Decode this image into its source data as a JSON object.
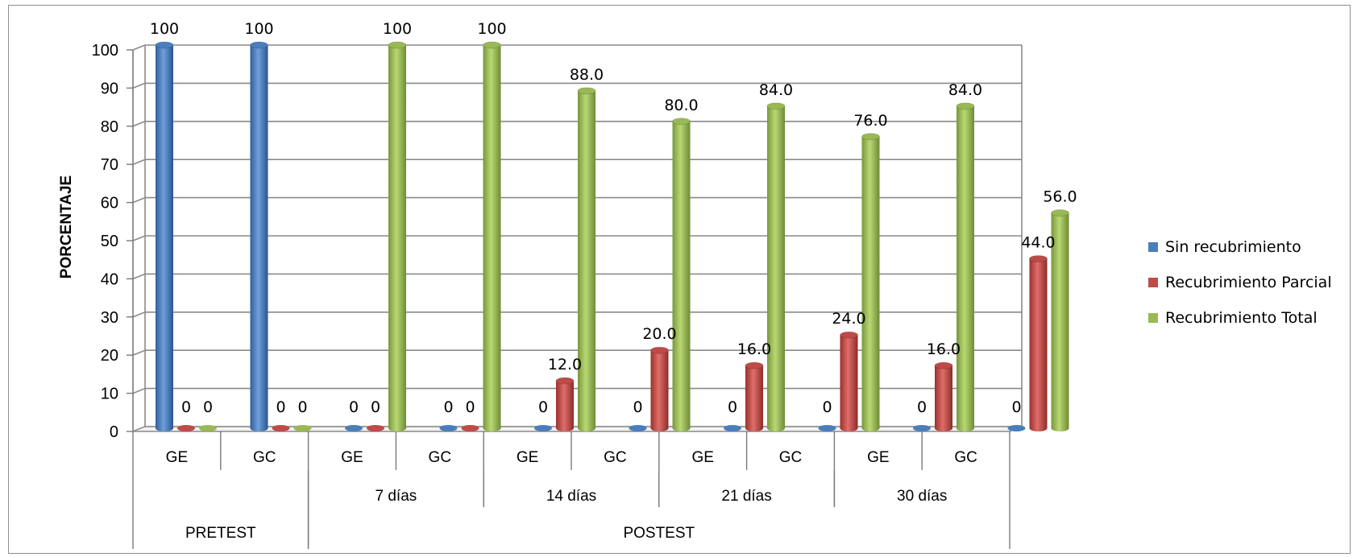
{
  "chart_data": {
    "type": "bar",
    "ylabel": "PORCENTAJE",
    "ylim": [
      0,
      100
    ],
    "yticks": [
      0,
      10,
      20,
      30,
      40,
      50,
      60,
      70,
      80,
      90,
      100
    ],
    "categories": [
      "GE",
      "GC",
      "GE",
      "GC",
      "GE",
      "GC",
      "GE",
      "GC",
      "GE",
      "GC"
    ],
    "subgroups": [
      {
        "label": "",
        "span": [
          0,
          1
        ]
      },
      {
        "label": "7 días",
        "span": [
          2,
          3
        ]
      },
      {
        "label": "14 días",
        "span": [
          4,
          5
        ]
      },
      {
        "label": "21 días",
        "span": [
          6,
          7
        ]
      },
      {
        "label": "30 días",
        "span": [
          8,
          9
        ]
      }
    ],
    "groups": [
      {
        "label": "PRETEST",
        "span": [
          0,
          1
        ]
      },
      {
        "label": "POSTEST",
        "span": [
          2,
          9
        ]
      }
    ],
    "series": [
      {
        "name": "Sin recubrimiento",
        "color": "#4a7ebb",
        "values": [
          100,
          100,
          0,
          0,
          0,
          0,
          0,
          0,
          0,
          0
        ],
        "labels": [
          "100",
          "100",
          "0",
          "0",
          "0",
          "0",
          "0",
          "0",
          "0",
          "0"
        ]
      },
      {
        "name": "Recubrimiento Parcial",
        "color": "#be4b48",
        "values": [
          0,
          0,
          0,
          0,
          12.0,
          20.0,
          16.0,
          24.0,
          16.0,
          44.0
        ],
        "labels": [
          "0",
          "0",
          "0",
          "0",
          "12.0",
          "20.0",
          "16.0",
          "24.0",
          "16.0",
          "44.0"
        ]
      },
      {
        "name": "Recubrimiento Total",
        "color": "#98b954",
        "values": [
          0,
          0,
          100,
          100,
          88.0,
          80.0,
          84.0,
          76.0,
          84.0,
          56.0
        ],
        "labels": [
          "0",
          "0",
          "100",
          "100",
          "88.0",
          "80.0",
          "84.0",
          "76.0",
          "84.0",
          "56.0"
        ]
      }
    ],
    "legend": "right",
    "grid": true
  }
}
